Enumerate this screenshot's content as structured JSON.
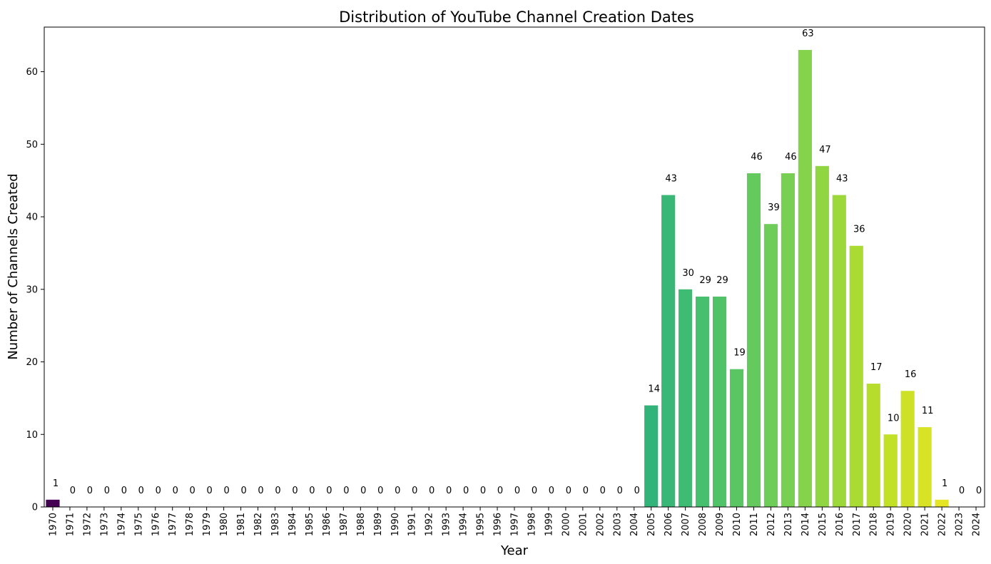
{
  "chart_data": {
    "type": "bar",
    "title": "Distribution of YouTube Channel Creation Dates",
    "xlabel": "Year",
    "ylabel": "Number of Channels Created",
    "categories": [
      "1970",
      "1971",
      "1972",
      "1973",
      "1974",
      "1975",
      "1976",
      "1977",
      "1978",
      "1979",
      "1980",
      "1981",
      "1982",
      "1983",
      "1984",
      "1985",
      "1986",
      "1987",
      "1988",
      "1989",
      "1990",
      "1991",
      "1992",
      "1993",
      "1994",
      "1995",
      "1996",
      "1997",
      "1998",
      "1999",
      "2000",
      "2001",
      "2002",
      "2003",
      "2004",
      "2005",
      "2006",
      "2007",
      "2008",
      "2009",
      "2010",
      "2011",
      "2012",
      "2013",
      "2014",
      "2015",
      "2016",
      "2017",
      "2018",
      "2019",
      "2020",
      "2021",
      "2022",
      "2023",
      "2024"
    ],
    "values": [
      1,
      0,
      0,
      0,
      0,
      0,
      0,
      0,
      0,
      0,
      0,
      0,
      0,
      0,
      0,
      0,
      0,
      0,
      0,
      0,
      0,
      0,
      0,
      0,
      0,
      0,
      0,
      0,
      0,
      0,
      0,
      0,
      0,
      0,
      0,
      14,
      43,
      30,
      29,
      29,
      19,
      46,
      39,
      46,
      63,
      47,
      43,
      36,
      17,
      10,
      16,
      11,
      1,
      0,
      0
    ],
    "ylim": [
      0,
      66.15
    ],
    "yticks": [
      0,
      10,
      20,
      30,
      40,
      50,
      60
    ],
    "grid": false,
    "palette": "viridis"
  }
}
